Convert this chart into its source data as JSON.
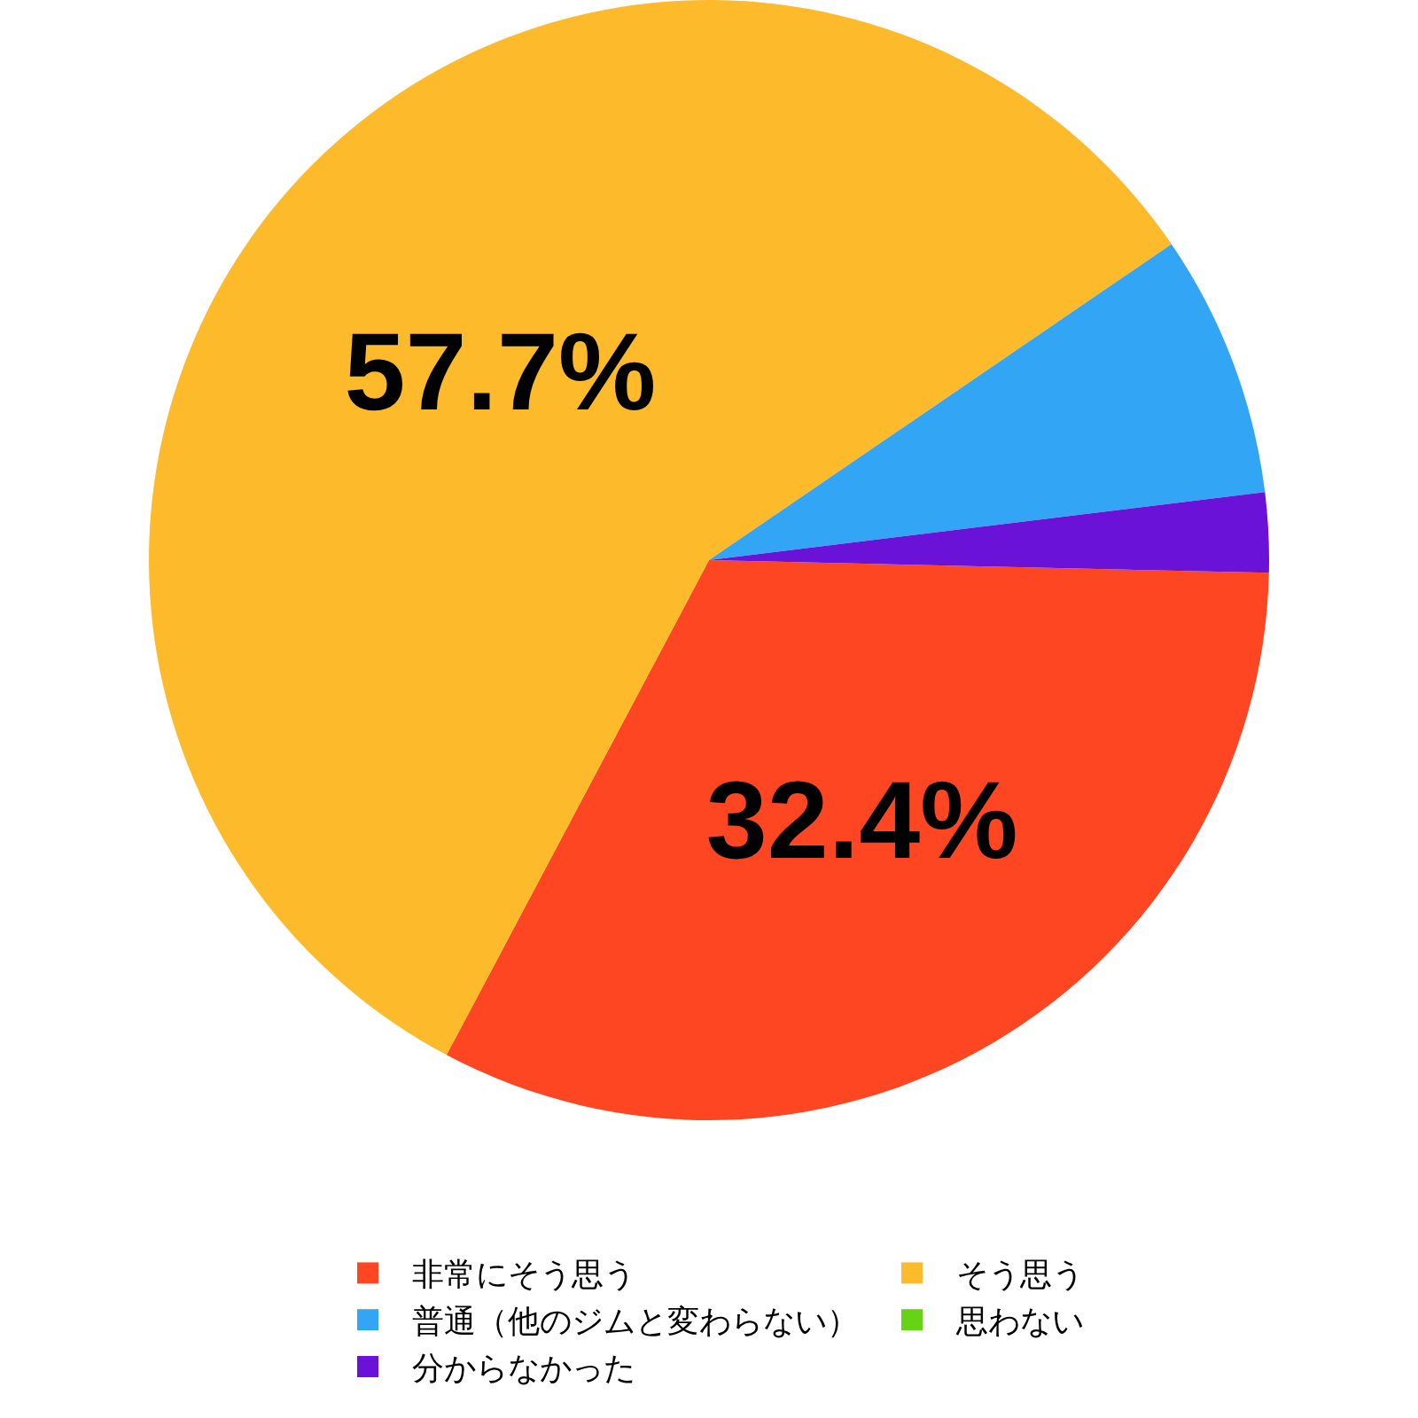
{
  "chart_data": {
    "type": "pie",
    "categories": [
      "非常にそう思う",
      "そう思う",
      "普通（他のジムと変わらない）",
      "思わない",
      "分からなかった"
    ],
    "values": [
      32.4,
      57.7,
      7.6,
      0,
      2.3
    ],
    "colors": [
      "#ff4622",
      "#fdbb2c",
      "#33a5f5",
      "#66d314",
      "#6b12d8"
    ],
    "value_labels": [
      "32.4%",
      "57.7%",
      null,
      null,
      null
    ],
    "legend": "bottom"
  }
}
